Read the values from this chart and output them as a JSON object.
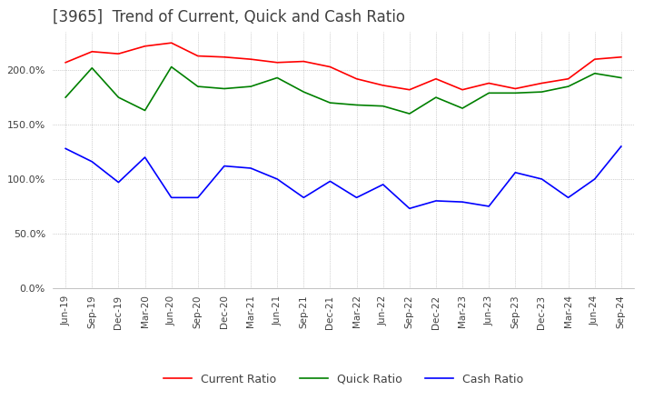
{
  "title": "[3965]  Trend of Current, Quick and Cash Ratio",
  "title_fontsize": 12,
  "title_color": "#404040",
  "x_labels": [
    "Jun-19",
    "Sep-19",
    "Dec-19",
    "Mar-20",
    "Jun-20",
    "Sep-20",
    "Dec-20",
    "Mar-21",
    "Jun-21",
    "Sep-21",
    "Dec-21",
    "Mar-22",
    "Jun-22",
    "Sep-22",
    "Dec-22",
    "Mar-23",
    "Jun-23",
    "Sep-23",
    "Dec-23",
    "Mar-24",
    "Jun-24",
    "Sep-24"
  ],
  "current_ratio": [
    207,
    217,
    215,
    222,
    225,
    213,
    212,
    210,
    207,
    208,
    203,
    192,
    186,
    182,
    192,
    182,
    188,
    183,
    188,
    192,
    210,
    212
  ],
  "quick_ratio": [
    175,
    202,
    175,
    163,
    203,
    185,
    183,
    185,
    193,
    180,
    170,
    168,
    167,
    160,
    175,
    165,
    179,
    179,
    180,
    185,
    197,
    193
  ],
  "cash_ratio": [
    128,
    116,
    97,
    120,
    83,
    83,
    112,
    110,
    100,
    83,
    98,
    83,
    95,
    73,
    80,
    79,
    75,
    106,
    100,
    83,
    100,
    130
  ],
  "current_color": "#ff0000",
  "quick_color": "#008000",
  "cash_color": "#0000ff",
  "ylim": [
    0,
    235
  ],
  "yticks": [
    0,
    50,
    100,
    150,
    200
  ],
  "background_color": "#ffffff",
  "grid_color": "#aaaaaa",
  "legend_labels": [
    "Current Ratio",
    "Quick Ratio",
    "Cash Ratio"
  ]
}
